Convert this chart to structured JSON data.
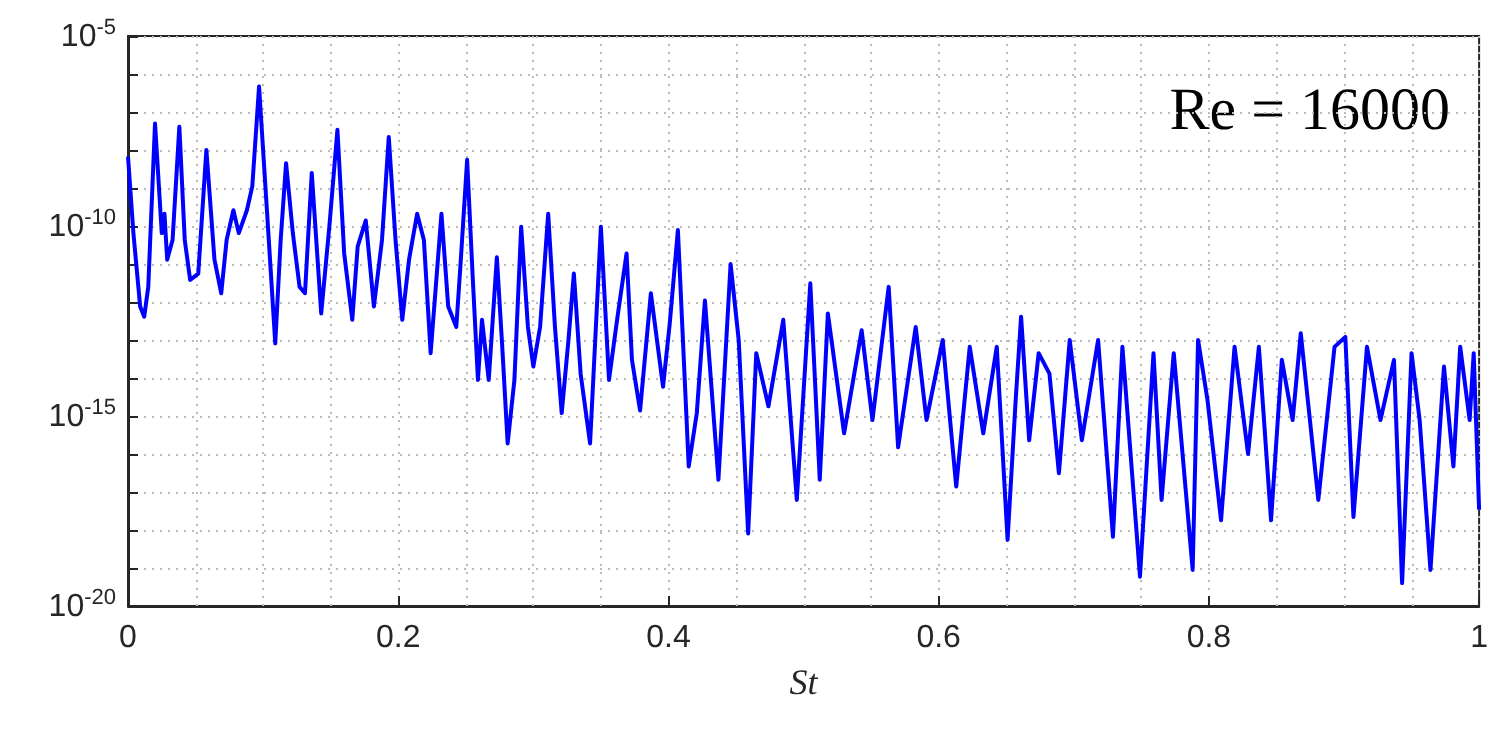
{
  "chart_data": {
    "type": "line",
    "xlabel": "St",
    "annotations": [
      "Re = 16000"
    ],
    "log": "y",
    "grid": true,
    "xlim": [
      0,
      1
    ],
    "xticks": [
      0,
      0.2,
      0.4,
      0.6,
      0.8,
      1
    ],
    "ylim": [
      1e-20,
      1e-05
    ],
    "yticks": [
      {
        "value": 1e-20,
        "label": "10$^{-20}$"
      },
      {
        "value": 1e-19,
        "label": null
      },
      {
        "value": 1e-18,
        "label": null
      },
      {
        "value": 1e-17,
        "label": null
      },
      {
        "value": 1e-16,
        "label": null
      },
      {
        "value": 1e-15,
        "label": "10$^{-15}$"
      },
      {
        "value": 1e-14,
        "label": null
      },
      {
        "value": 1e-13,
        "label": null
      },
      {
        "value": 1e-12,
        "label": null
      },
      {
        "value": 1e-11,
        "label": null
      },
      {
        "value": 1e-10,
        "label": "10$^{-10}$"
      },
      {
        "value": 1e-09,
        "label": null
      },
      {
        "value": 1e-08,
        "label": null
      },
      {
        "value": 1e-07,
        "label": null
      },
      {
        "value": 1e-06,
        "label": null
      },
      {
        "value": 1e-05,
        "label": "10$^{-5}$"
      }
    ],
    "series": [
      {
        "color": "#0000ff",
        "x": [
          0,
          0.004,
          0.009,
          0.012,
          0.015,
          0.02,
          0.025,
          0.027,
          0.029,
          0.033,
          0.038,
          0.042,
          0.046,
          0.052,
          0.058,
          0.064,
          0.069,
          0.073,
          0.078,
          0.082,
          0.088,
          0.092,
          0.097,
          0.103,
          0.109,
          0.113,
          0.117,
          0.122,
          0.127,
          0.131,
          0.136,
          0.143,
          0.149,
          0.155,
          0.16,
          0.166,
          0.17,
          0.176,
          0.182,
          0.188,
          0.193,
          0.198,
          0.203,
          0.208,
          0.214,
          0.219,
          0.224,
          0.232,
          0.237,
          0.243,
          0.246,
          0.251,
          0.255,
          0.259,
          0.262,
          0.267,
          0.273,
          0.277,
          0.281,
          0.286,
          0.291,
          0.296,
          0.3,
          0.305,
          0.311,
          0.316,
          0.321,
          0.326,
          0.33,
          0.335,
          0.342,
          0.35,
          0.356,
          0.362,
          0.369,
          0.373,
          0.379,
          0.387,
          0.396,
          0.401,
          0.407,
          0.415,
          0.421,
          0.427,
          0.437,
          0.446,
          0.452,
          0.459,
          0.465,
          0.474,
          0.485,
          0.495,
          0.505,
          0.512,
          0.518,
          0.53,
          0.543,
          0.551,
          0.563,
          0.57,
          0.583,
          0.591,
          0.603,
          0.613,
          0.623,
          0.633,
          0.643,
          0.651,
          0.657,
          0.661,
          0.667,
          0.674,
          0.682,
          0.689,
          0.697,
          0.706,
          0.718,
          0.729,
          0.736,
          0.749,
          0.759,
          0.765,
          0.774,
          0.788,
          0.792,
          0.799,
          0.809,
          0.819,
          0.829,
          0.837,
          0.846,
          0.854,
          0.862,
          0.868,
          0.881,
          0.893,
          0.901,
          0.907,
          0.917,
          0.927,
          0.937,
          0.943,
          0.95,
          0.956,
          0.964,
          0.974,
          0.981,
          0.986,
          0.993,
          0.996,
          1
        ],
        "values": [
          6.7e-09,
          6.5e-11,
          7.6e-13,
          4.1e-13,
          2.5e-12,
          5e-08,
          6.5e-11,
          2.1e-10,
          1.3e-11,
          4.3e-11,
          4.1e-08,
          4.3e-11,
          3.8e-12,
          5.6e-12,
          1e-08,
          1.3e-11,
          1.7e-12,
          4.3e-11,
          2.6e-10,
          6.5e-11,
          2.6e-10,
          1.1e-09,
          4.7e-07,
          2.1e-10,
          8.1e-14,
          4.3e-11,
          4.5e-09,
          6.5e-11,
          2.5e-12,
          1.7e-12,
          2.5e-09,
          5e-13,
          9.5e-11,
          3.4e-08,
          1.9e-11,
          3.4e-13,
          2.9e-11,
          1.4e-10,
          7.6e-13,
          4.3e-11,
          2.2e-08,
          4.3e-11,
          3.4e-13,
          1.3e-11,
          2.1e-10,
          4.3e-11,
          4.5e-14,
          2.1e-10,
          7.6e-13,
          2.2e-13,
          8.5e-12,
          5.5e-09,
          5.6e-12,
          8.9e-15,
          3.4e-13,
          8.9e-15,
          1.5e-11,
          6.6e-14,
          1.9e-16,
          8.9e-15,
          9.5e-11,
          2.2e-13,
          2e-14,
          2.2e-13,
          2.1e-10,
          2.2e-13,
          1.2e-15,
          1e-13,
          5.6e-12,
          1.3e-14,
          1.9e-16,
          9.5e-11,
          8.9e-15,
          3.4e-13,
          1.9e-11,
          3e-14,
          1.4e-15,
          1.7e-12,
          5.9e-15,
          2.8e-13,
          7.8e-11,
          4.7e-17,
          1.2e-15,
          1.1e-12,
          2.1e-17,
          1e-11,
          1e-13,
          8.1e-19,
          4.5e-14,
          1.8e-15,
          3.4e-13,
          6.2e-18,
          3.1e-12,
          2.1e-17,
          5e-13,
          3.5e-16,
          1.8e-13,
          7.8e-16,
          2.5e-12,
          1.5e-16,
          2.2e-13,
          7.8e-16,
          1e-13,
          1.4e-17,
          6.6e-14,
          3.5e-16,
          6.6e-14,
          5.5e-19,
          2.6e-15,
          4.1e-13,
          2.3e-16,
          4.5e-14,
          1.3e-14,
          3.1e-17,
          1e-13,
          2.3e-16,
          1e-13,
          6.6e-19,
          6.6e-14,
          5.9e-20,
          4.5e-14,
          6.2e-18,
          4.5e-14,
          8.9e-20,
          1e-13,
          2.6e-15,
          1.8e-18,
          6.6e-14,
          1e-16,
          6.6e-14,
          1.8e-18,
          3e-14,
          7.8e-16,
          1.5e-13,
          6.2e-18,
          6.6e-14,
          1.2e-13,
          2.2e-18,
          6.6e-14,
          7.8e-16,
          3e-14,
          4e-20,
          4.5e-14,
          7.8e-16,
          8.9e-20,
          2e-14,
          4.7e-17,
          6.6e-14,
          7.8e-16,
          4.5e-14,
          3.4e-18
        ]
      }
    ]
  }
}
